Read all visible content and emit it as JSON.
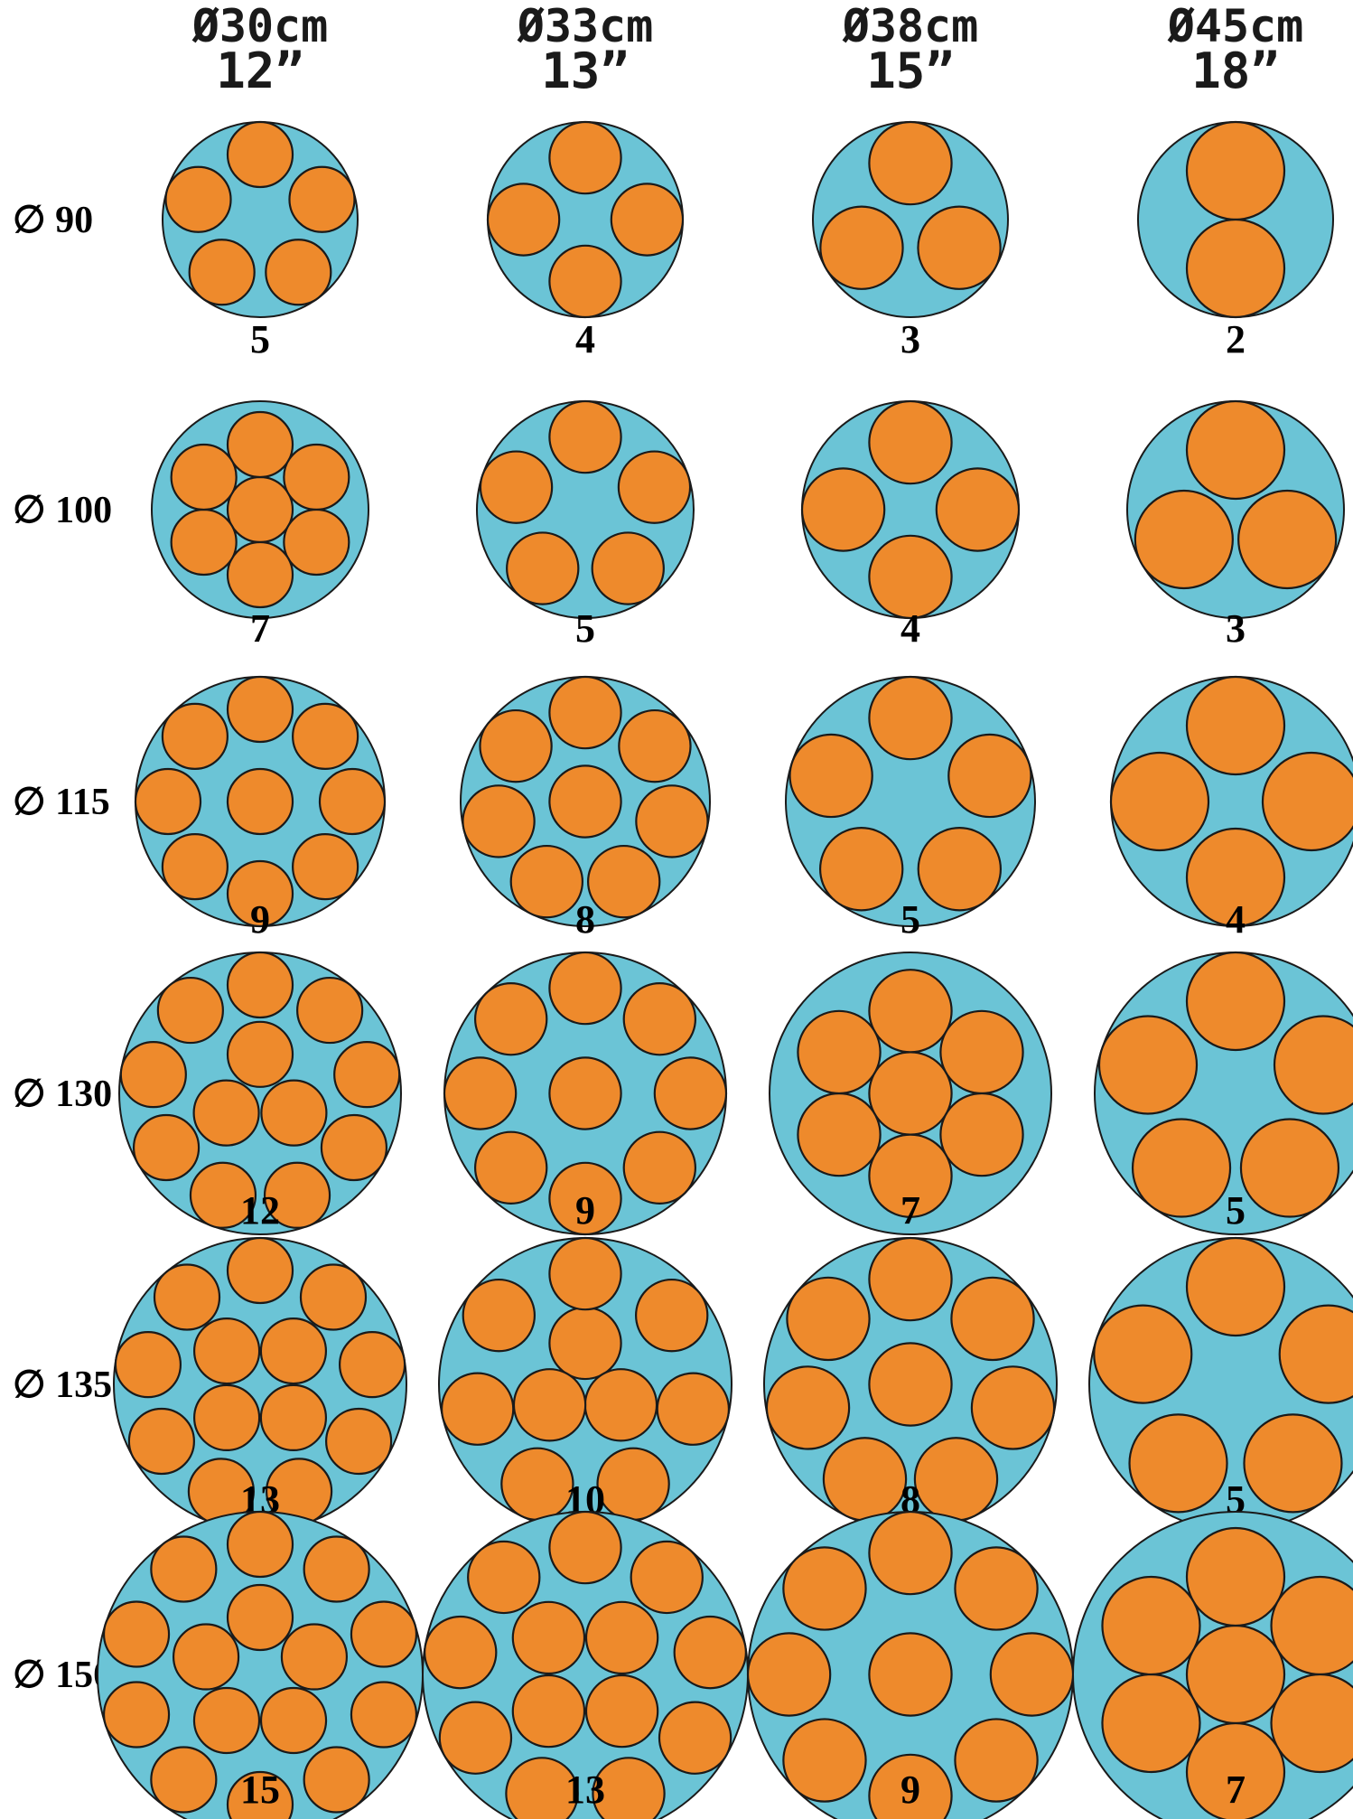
{
  "columns": [
    {
      "cm": "Ø30cm",
      "inch": "12”",
      "pizza_cm": 30
    },
    {
      "cm": "Ø33cm",
      "inch": "13”",
      "pizza_cm": 33
    },
    {
      "cm": "Ø38cm",
      "inch": "15”",
      "pizza_cm": 38
    },
    {
      "cm": "Ø45cm",
      "inch": "18”",
      "pizza_cm": 45
    }
  ],
  "rows": [
    {
      "label": "∅ 90",
      "table_cm": 90,
      "counts": [
        "5",
        "4",
        "3",
        "2"
      ]
    },
    {
      "label": "∅ 100",
      "table_cm": 100,
      "counts": [
        "7",
        "5",
        "4",
        "3"
      ]
    },
    {
      "label": "∅ 115",
      "table_cm": 115,
      "counts": [
        "9",
        "8",
        "5",
        "4"
      ]
    },
    {
      "label": "∅ 130",
      "table_cm": 130,
      "counts": [
        "12",
        "9",
        "7",
        "5"
      ]
    },
    {
      "label": "∅ 135",
      "table_cm": 135,
      "counts": [
        "13",
        "10",
        "8",
        "5"
      ]
    },
    {
      "label": "∅ 150",
      "table_cm": 150,
      "counts": [
        "15",
        "13",
        "9",
        "7"
      ]
    }
  ],
  "colors": {
    "table": "#6bc4d6",
    "pizza": "#ee8a2c",
    "outline": "#1a1a1a"
  }
}
